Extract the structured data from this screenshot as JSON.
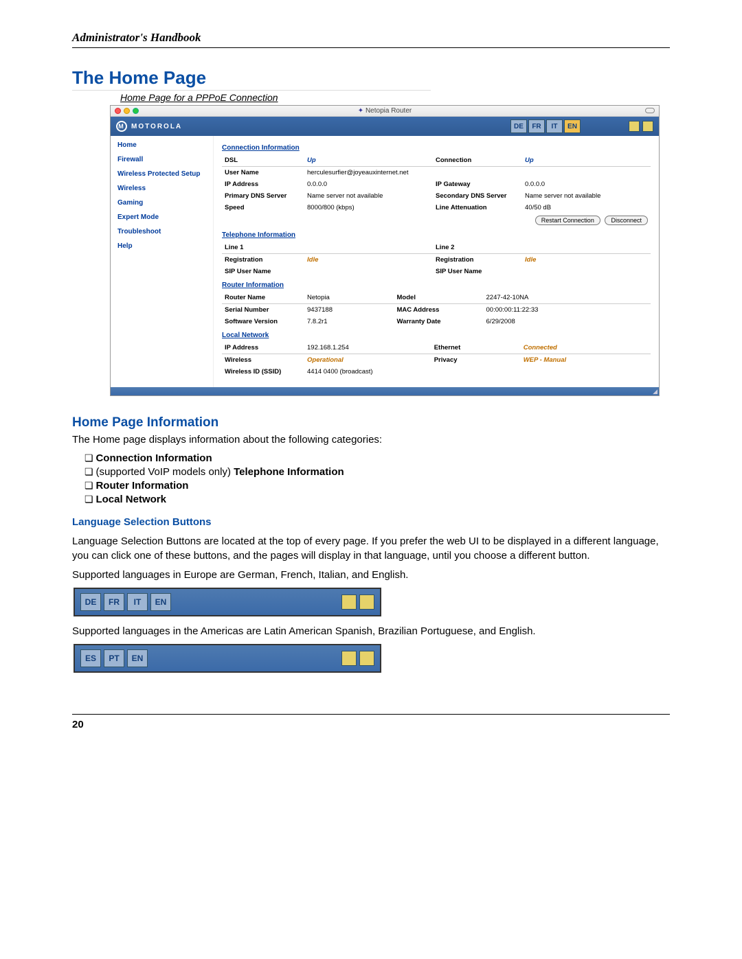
{
  "doc": {
    "header": "Administrator's Handbook",
    "page_number": "20"
  },
  "section": {
    "title": "The Home Page",
    "caption": "Home Page for a PPPoE Connection"
  },
  "screenshot": {
    "window_title": "Netopia Router",
    "brand": "MOTOROLA",
    "languages_eu": [
      "DE",
      "FR",
      "IT",
      "EN"
    ],
    "active_lang": "EN",
    "nav": [
      "Home",
      "Firewall",
      "Wireless Protected Setup",
      "Wireless",
      "Gaming",
      "Expert Mode",
      "Troubleshoot",
      "Help"
    ],
    "buttons": {
      "restart": "Restart Connection",
      "disconnect": "Disconnect"
    },
    "conn": {
      "title": "Connection Information",
      "dsl_l": "DSL",
      "dsl_v": "Up",
      "connection_l": "Connection",
      "connection_v": "Up",
      "user_l": "User Name",
      "user_v": "herculesurfier@joyeauxinternet.net",
      "ip_l": "IP Address",
      "ip_v": "0.0.0.0",
      "gw_l": "IP Gateway",
      "gw_v": "0.0.0.0",
      "pdns_l": "Primary DNS Server",
      "pdns_v": "Name server not available",
      "sdns_l": "Secondary DNS Server",
      "sdns_v": "Name server not available",
      "speed_l": "Speed",
      "speed_v": "8000/800 (kbps)",
      "atten_l": "Line Attenuation",
      "atten_v": "40/50 dB"
    },
    "tel": {
      "title": "Telephone Information",
      "l1": "Line 1",
      "l2": "Line 2",
      "reg_l": "Registration",
      "reg_v": "Idle",
      "sip_l": "SIP User Name"
    },
    "router": {
      "title": "Router Information",
      "name_l": "Router Name",
      "name_v": "Netopia",
      "model_l": "Model",
      "model_v": "2247-42-10NA",
      "serial_l": "Serial Number",
      "serial_v": "9437188",
      "mac_l": "MAC Address",
      "mac_v": "00:00:00:11:22:33",
      "sw_l": "Software Version",
      "sw_v": "7.8.2r1",
      "warr_l": "Warranty Date",
      "warr_v": "6/29/2008"
    },
    "local": {
      "title": "Local Network",
      "ip_l": "IP Address",
      "ip_v": "192.168.1.254",
      "eth_l": "Ethernet",
      "eth_v": "Connected",
      "wl_l": "Wireless",
      "wl_v": "Operational",
      "priv_l": "Privacy",
      "priv_v": "WEP - Manual",
      "ssid_l": "Wireless ID (SSID)",
      "ssid_v": "4414 0400 (broadcast)"
    }
  },
  "info": {
    "heading": "Home Page Information",
    "intro": "The Home page displays information about the following categories:",
    "items": [
      {
        "text": "Connection Information",
        "bold": true
      },
      {
        "prefix": "(supported VoIP models only) ",
        "text": "Telephone Information",
        "bold": true
      },
      {
        "text": "Router Information",
        "bold": true
      },
      {
        "text": "Local Network",
        "bold": true
      }
    ]
  },
  "lang_section": {
    "heading": "Language Selection Buttons",
    "p1": "Language Selection Buttons are located at the top of every page. If you prefer the web UI to be displayed in a different language, you can click one of these buttons, and the pages will display in that language, until you choose a different button.",
    "p2": "Supported languages in Europe are German, French, Italian, and English.",
    "eu": [
      "DE",
      "FR",
      "IT",
      "EN"
    ],
    "p3": "Supported languages in the Americas are Latin American Spanish, Brazilian Portuguese, and English.",
    "am": [
      "ES",
      "PT",
      "EN"
    ]
  }
}
